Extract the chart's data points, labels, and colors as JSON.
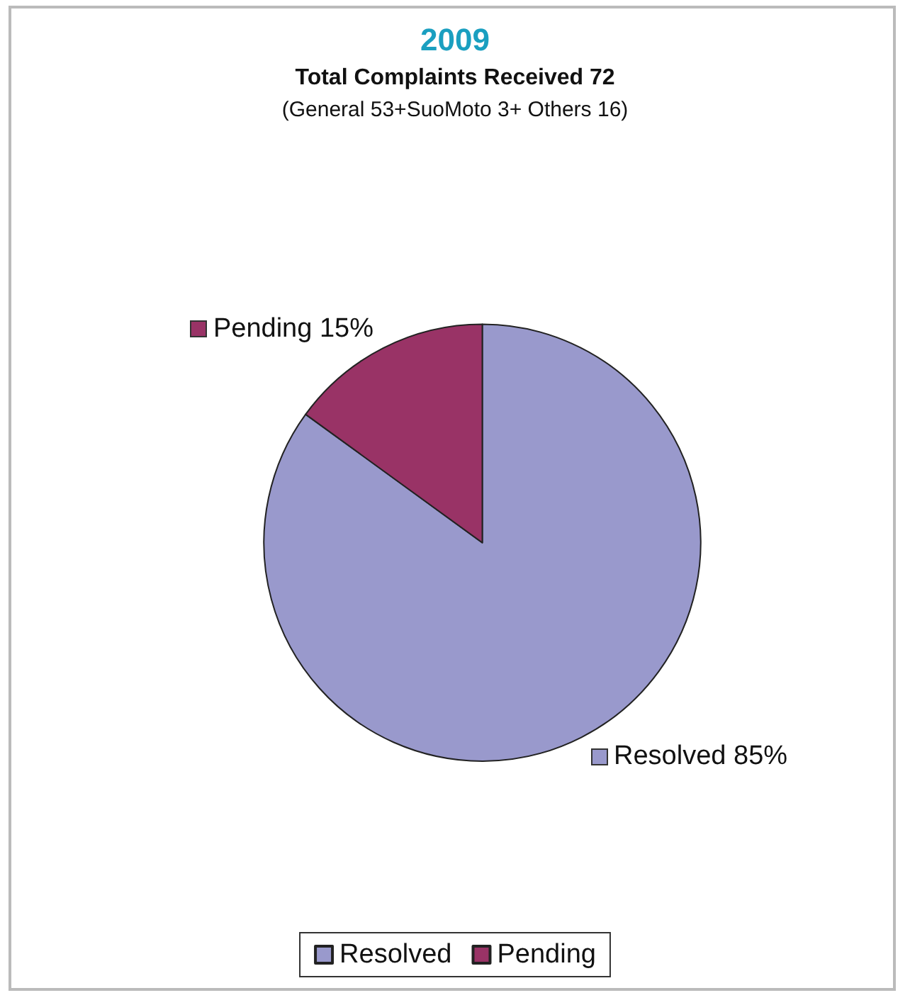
{
  "chart_data": {
    "type": "pie",
    "title": "2009",
    "subtitle": "Total Complaints Received 72",
    "annotations": [
      "(General 53+SuoMoto 3+ Others 16)"
    ],
    "categories": [
      "Resolved",
      "Pending"
    ],
    "values": [
      85,
      15
    ],
    "value_labels": [
      "85%",
      "15%"
    ],
    "colors": [
      "#9999cc",
      "#993366"
    ],
    "legend": "bottom"
  }
}
